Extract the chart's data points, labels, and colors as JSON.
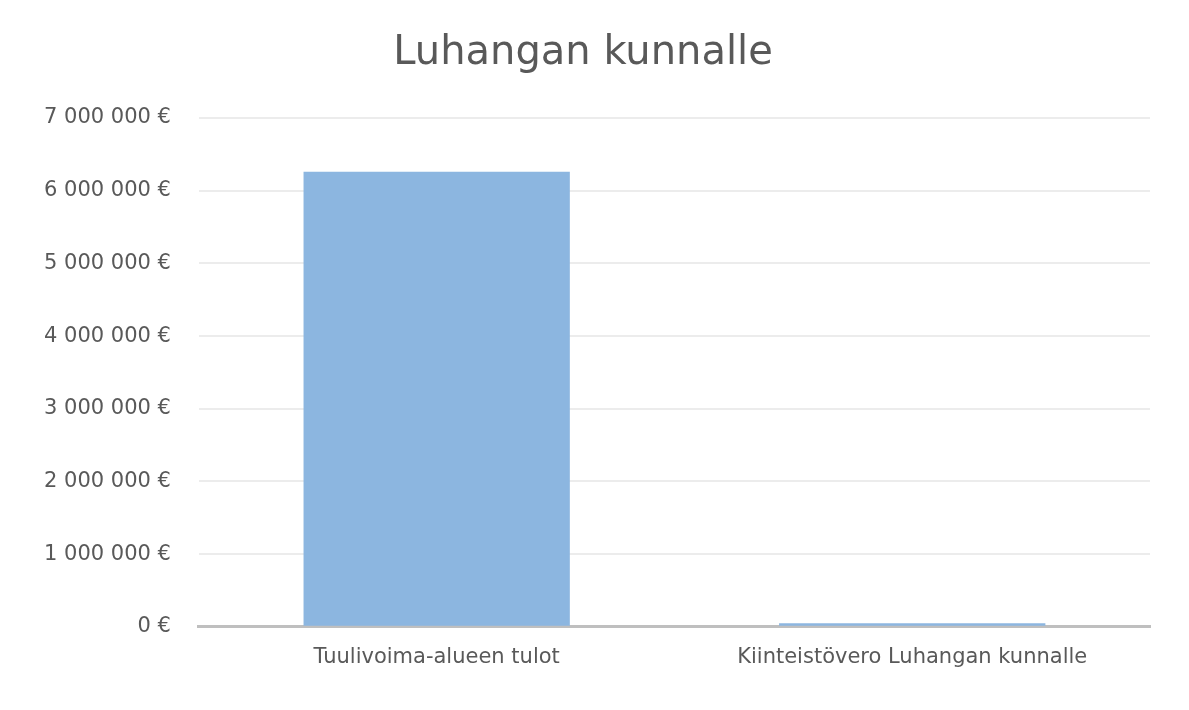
{
  "chart_data": {
    "type": "bar",
    "title": "Luhangan kunnalle",
    "categories": [
      "Tuulivoima-alueen tulot",
      "Kiinteistövero Luhangan kunnalle"
    ],
    "values": [
      6260000,
      50000
    ],
    "color": "#8cb6e0",
    "ylim": [
      0,
      7000000
    ],
    "yticks": [
      {
        "value": 0,
        "label": "0 €"
      },
      {
        "value": 1000000,
        "label": "1 000 000 €"
      },
      {
        "value": 2000000,
        "label": "2 000 000 €"
      },
      {
        "value": 3000000,
        "label": "3 000 000 €"
      },
      {
        "value": 4000000,
        "label": "4 000 000 €"
      },
      {
        "value": 5000000,
        "label": "5 000 000 €"
      },
      {
        "value": 6000000,
        "label": "6 000 000 €"
      },
      {
        "value": 7000000,
        "label": "7 000 000 €"
      }
    ],
    "grid": "y",
    "legend": false
  }
}
